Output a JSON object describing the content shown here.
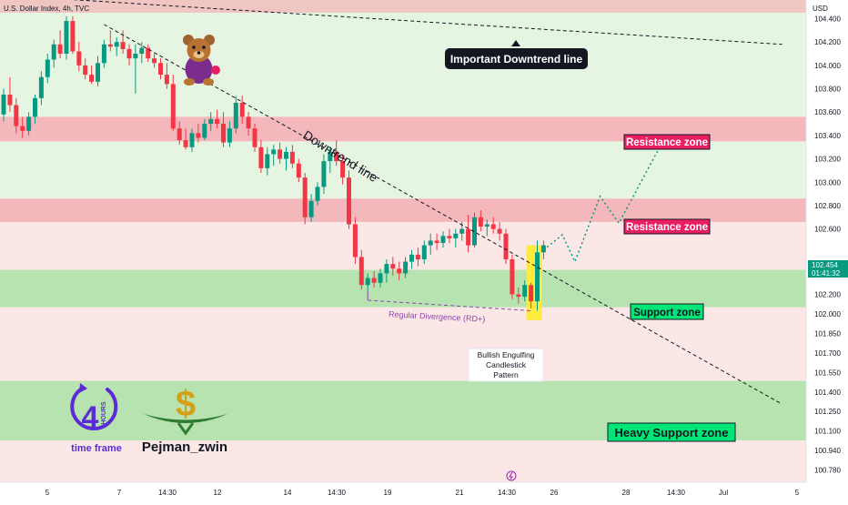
{
  "symbol_line": "U.S. Dollar Index, 4h, TVC",
  "currency": "USD",
  "price_axis": {
    "ticks": [
      "104.400",
      "104.200",
      "104.000",
      "103.800",
      "103.600",
      "103.400",
      "103.200",
      "103.000",
      "102.800",
      "102.600",
      "102.200",
      "102.000",
      "101.850",
      "101.700",
      "101.550",
      "101.400",
      "101.250",
      "101.100",
      "100.940",
      "100.780"
    ]
  },
  "last_price": {
    "value": "102.454",
    "countdown": "01:41:32"
  },
  "time_axis": {
    "labels": [
      "5",
      "7",
      "14:30",
      "12",
      "14",
      "14:30",
      "19",
      "21",
      "14:30",
      "26",
      "28",
      "14:30",
      "Jul",
      "5"
    ]
  },
  "zones": [
    {
      "key": "resistance_1",
      "label": "Resistance zone",
      "from": 103.35,
      "to": 103.56
    },
    {
      "key": "resistance_2",
      "label": "Resistance zone",
      "from": 102.66,
      "to": 102.86
    },
    {
      "key": "support",
      "label": "Support zone",
      "from": 101.93,
      "to": 102.25
    },
    {
      "key": "heavy_support",
      "label": "Heavy Support zone",
      "from": 100.79,
      "to": 101.3
    }
  ],
  "annotations": {
    "important_downtrend": "Important Downtrend line",
    "downtrend_line": "Downtrend line",
    "divergence": "Regular Divergence (RD+)",
    "pattern_line1": "Bullish Engulfing",
    "pattern_line2": "Candlestick",
    "pattern_line3": "Pattern"
  },
  "branding": {
    "timeframe_number": "4",
    "timeframe_unit": "HOURS",
    "timeframe_caption": "time frame",
    "author": "Pejman_zwin"
  },
  "colors": {
    "up": "#089981",
    "down": "#f23645",
    "resistance_zone": "#f4b8bc",
    "support_zone": "#b7e3b0",
    "label_pink": "#e91e63",
    "label_green": "#00e676",
    "highlight": "#ffeb3b",
    "timeframe_purple": "#5b2bd6"
  },
  "chart_data": {
    "type": "candlestick",
    "timeframe": "4h",
    "ylim": [
      100.73,
      104.58
    ],
    "candles": [
      {
        "o": 103.58,
        "h": 103.8,
        "l": 103.52,
        "c": 103.75
      },
      {
        "o": 103.75,
        "h": 103.9,
        "l": 103.6,
        "c": 103.66
      },
      {
        "o": 103.66,
        "h": 103.72,
        "l": 103.42,
        "c": 103.48
      },
      {
        "o": 103.48,
        "h": 103.56,
        "l": 103.38,
        "c": 103.44
      },
      {
        "o": 103.44,
        "h": 103.6,
        "l": 103.4,
        "c": 103.56
      },
      {
        "o": 103.56,
        "h": 103.75,
        "l": 103.5,
        "c": 103.72
      },
      {
        "o": 103.72,
        "h": 103.95,
        "l": 103.66,
        "c": 103.9
      },
      {
        "o": 103.9,
        "h": 104.1,
        "l": 103.85,
        "c": 104.05
      },
      {
        "o": 104.05,
        "h": 104.22,
        "l": 103.98,
        "c": 104.18
      },
      {
        "o": 104.18,
        "h": 104.3,
        "l": 104.06,
        "c": 104.1
      },
      {
        "o": 104.1,
        "h": 104.42,
        "l": 104.05,
        "c": 104.38
      },
      {
        "o": 104.38,
        "h": 104.42,
        "l": 104.1,
        "c": 104.12
      },
      {
        "o": 104.12,
        "h": 104.2,
        "l": 103.95,
        "c": 104.0
      },
      {
        "o": 104.0,
        "h": 104.06,
        "l": 103.88,
        "c": 103.92
      },
      {
        "o": 103.92,
        "h": 104.0,
        "l": 103.84,
        "c": 103.86
      },
      {
        "o": 103.86,
        "h": 104.08,
        "l": 103.82,
        "c": 104.02
      },
      {
        "o": 104.02,
        "h": 104.22,
        "l": 103.98,
        "c": 104.18
      },
      {
        "o": 104.18,
        "h": 104.3,
        "l": 104.12,
        "c": 104.16
      },
      {
        "o": 104.16,
        "h": 104.24,
        "l": 104.08,
        "c": 104.2
      },
      {
        "o": 104.2,
        "h": 104.3,
        "l": 104.1,
        "c": 104.14
      },
      {
        "o": 104.14,
        "h": 104.18,
        "l": 104.0,
        "c": 104.06
      },
      {
        "o": 104.06,
        "h": 104.18,
        "l": 103.76,
        "c": 104.1
      },
      {
        "o": 104.1,
        "h": 104.2,
        "l": 104.02,
        "c": 104.15
      },
      {
        "o": 104.15,
        "h": 104.18,
        "l": 104.03,
        "c": 104.06
      },
      {
        "o": 104.06,
        "h": 104.1,
        "l": 103.98,
        "c": 104.02
      },
      {
        "o": 104.02,
        "h": 104.06,
        "l": 103.88,
        "c": 103.92
      },
      {
        "o": 103.92,
        "h": 104.02,
        "l": 103.8,
        "c": 103.84
      },
      {
        "o": 103.84,
        "h": 103.92,
        "l": 103.44,
        "c": 103.46
      },
      {
        "o": 103.46,
        "h": 103.52,
        "l": 103.32,
        "c": 103.36
      },
      {
        "o": 103.36,
        "h": 103.46,
        "l": 103.28,
        "c": 103.3
      },
      {
        "o": 103.3,
        "h": 103.46,
        "l": 103.26,
        "c": 103.42
      },
      {
        "o": 103.42,
        "h": 103.5,
        "l": 103.34,
        "c": 103.38
      },
      {
        "o": 103.38,
        "h": 103.54,
        "l": 103.36,
        "c": 103.5
      },
      {
        "o": 103.5,
        "h": 103.6,
        "l": 103.44,
        "c": 103.54
      },
      {
        "o": 103.54,
        "h": 103.62,
        "l": 103.46,
        "c": 103.5
      },
      {
        "o": 103.5,
        "h": 103.6,
        "l": 103.3,
        "c": 103.34
      },
      {
        "o": 103.34,
        "h": 103.52,
        "l": 103.3,
        "c": 103.46
      },
      {
        "o": 103.46,
        "h": 103.74,
        "l": 103.42,
        "c": 103.68
      },
      {
        "o": 103.68,
        "h": 103.74,
        "l": 103.5,
        "c": 103.56
      },
      {
        "o": 103.56,
        "h": 103.6,
        "l": 103.4,
        "c": 103.46
      },
      {
        "o": 103.46,
        "h": 103.5,
        "l": 103.26,
        "c": 103.3
      },
      {
        "o": 103.3,
        "h": 103.36,
        "l": 103.08,
        "c": 103.12
      },
      {
        "o": 103.12,
        "h": 103.3,
        "l": 103.06,
        "c": 103.24
      },
      {
        "o": 103.24,
        "h": 103.32,
        "l": 103.14,
        "c": 103.28
      },
      {
        "o": 103.28,
        "h": 103.34,
        "l": 103.16,
        "c": 103.2
      },
      {
        "o": 103.2,
        "h": 103.3,
        "l": 103.1,
        "c": 103.26
      },
      {
        "o": 103.26,
        "h": 103.32,
        "l": 103.12,
        "c": 103.16
      },
      {
        "o": 103.16,
        "h": 103.2,
        "l": 103.0,
        "c": 103.04
      },
      {
        "o": 103.04,
        "h": 103.08,
        "l": 102.64,
        "c": 102.7
      },
      {
        "o": 102.7,
        "h": 102.9,
        "l": 102.66,
        "c": 102.84
      },
      {
        "o": 102.84,
        "h": 103.0,
        "l": 102.8,
        "c": 102.96
      },
      {
        "o": 102.96,
        "h": 103.24,
        "l": 102.9,
        "c": 103.18
      },
      {
        "o": 103.18,
        "h": 103.3,
        "l": 103.08,
        "c": 103.26
      },
      {
        "o": 103.26,
        "h": 103.36,
        "l": 103.14,
        "c": 103.18
      },
      {
        "o": 103.18,
        "h": 103.24,
        "l": 102.98,
        "c": 103.04
      },
      {
        "o": 103.04,
        "h": 103.1,
        "l": 102.6,
        "c": 102.64
      },
      {
        "o": 102.64,
        "h": 102.7,
        "l": 102.3,
        "c": 102.36
      },
      {
        "o": 102.36,
        "h": 102.42,
        "l": 102.08,
        "c": 102.12
      },
      {
        "o": 102.12,
        "h": 102.22,
        "l": 102.07,
        "c": 102.18
      },
      {
        "o": 102.18,
        "h": 102.24,
        "l": 102.1,
        "c": 102.14
      },
      {
        "o": 102.14,
        "h": 102.26,
        "l": 102.1,
        "c": 102.22
      },
      {
        "o": 102.22,
        "h": 102.34,
        "l": 102.14,
        "c": 102.3
      },
      {
        "o": 102.3,
        "h": 102.36,
        "l": 102.2,
        "c": 102.26
      },
      {
        "o": 102.26,
        "h": 102.32,
        "l": 102.16,
        "c": 102.22
      },
      {
        "o": 102.22,
        "h": 102.36,
        "l": 102.18,
        "c": 102.32
      },
      {
        "o": 102.32,
        "h": 102.42,
        "l": 102.26,
        "c": 102.38
      },
      {
        "o": 102.38,
        "h": 102.44,
        "l": 102.28,
        "c": 102.34
      },
      {
        "o": 102.34,
        "h": 102.5,
        "l": 102.3,
        "c": 102.46
      },
      {
        "o": 102.46,
        "h": 102.56,
        "l": 102.38,
        "c": 102.5
      },
      {
        "o": 102.5,
        "h": 102.56,
        "l": 102.42,
        "c": 102.48
      },
      {
        "o": 102.48,
        "h": 102.58,
        "l": 102.44,
        "c": 102.54
      },
      {
        "o": 102.54,
        "h": 102.6,
        "l": 102.48,
        "c": 102.52
      },
      {
        "o": 102.52,
        "h": 102.6,
        "l": 102.44,
        "c": 102.56
      },
      {
        "o": 102.56,
        "h": 102.66,
        "l": 102.5,
        "c": 102.6
      },
      {
        "o": 102.6,
        "h": 102.72,
        "l": 102.4,
        "c": 102.46
      },
      {
        "o": 102.46,
        "h": 102.74,
        "l": 102.44,
        "c": 102.7
      },
      {
        "o": 102.7,
        "h": 102.76,
        "l": 102.58,
        "c": 102.62
      },
      {
        "o": 102.62,
        "h": 102.68,
        "l": 102.54,
        "c": 102.64
      },
      {
        "o": 102.64,
        "h": 102.7,
        "l": 102.56,
        "c": 102.6
      },
      {
        "o": 102.6,
        "h": 102.66,
        "l": 102.5,
        "c": 102.56
      },
      {
        "o": 102.56,
        "h": 102.6,
        "l": 102.3,
        "c": 102.34
      },
      {
        "o": 102.34,
        "h": 102.38,
        "l": 102.0,
        "c": 102.04
      },
      {
        "o": 102.04,
        "h": 102.1,
        "l": 101.96,
        "c": 102.02
      },
      {
        "o": 102.02,
        "h": 102.16,
        "l": 101.98,
        "c": 102.12
      },
      {
        "o": 102.12,
        "h": 102.14,
        "l": 101.92,
        "c": 101.98
      },
      {
        "o": 101.98,
        "h": 102.5,
        "l": 101.9,
        "c": 102.4
      },
      {
        "o": 102.4,
        "h": 102.5,
        "l": 102.34,
        "c": 102.46
      }
    ],
    "highlight_candles": [
      84,
      85
    ],
    "forecast_path": [
      [
        86,
        102.42
      ],
      [
        89,
        102.55
      ],
      [
        91,
        102.32
      ],
      [
        95,
        102.88
      ],
      [
        98,
        102.65
      ],
      [
        105,
        103.35
      ]
    ],
    "divergence_line": [
      [
        58,
        101.99
      ],
      [
        84,
        101.9
      ]
    ],
    "trendlines": [
      {
        "name": "Downtrend line",
        "from": [
          16,
          104.35
        ],
        "to": [
          124,
          101.1
        ]
      },
      {
        "name": "Important Downtrend line",
        "from": [
          0,
          104.6
        ],
        "to": [
          124,
          104.18
        ]
      }
    ]
  }
}
